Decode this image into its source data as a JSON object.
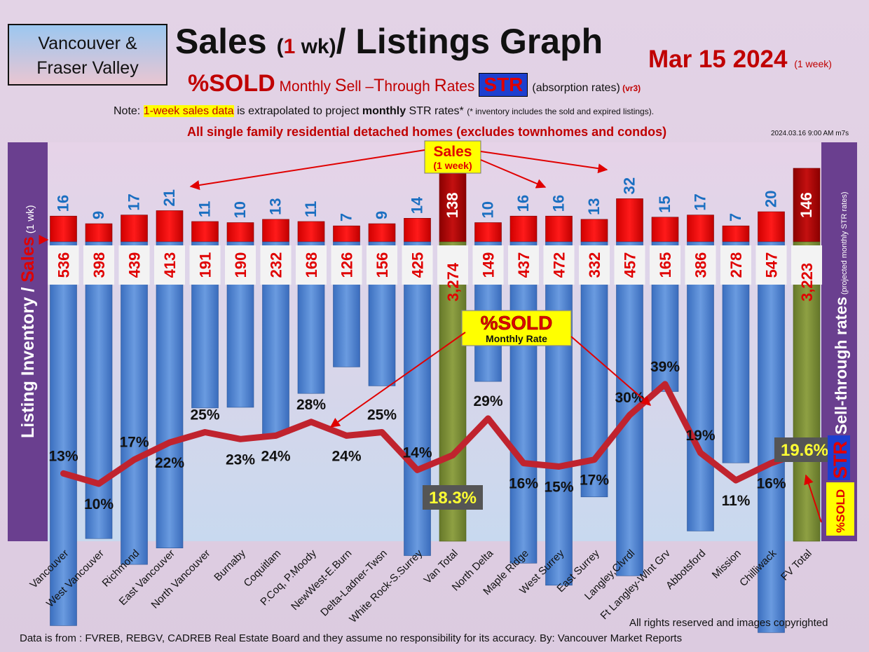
{
  "header": {
    "region_line1": "Vancouver &",
    "region_line2": "Fraser Valley",
    "title_a": "Sales ",
    "title_b": "(",
    "title_c": "1",
    "title_d": " wk)",
    "title_e": "/ Listings Graph",
    "date": "Mar 15  2024",
    "date_note": "(1 week)",
    "sub_a": "%SOLD",
    "sub_b1": " Monthly ",
    "sub_b2": "S",
    "sub_b3": "ell –",
    "sub_b4": "T",
    "sub_b5": "hrough ",
    "sub_b6": "R",
    "sub_b7": "ates",
    "sub_str": "STR",
    "sub_c": "(absorption rates)",
    "sub_d": " (vr3)",
    "note_a": "Note: ",
    "note_b": "1-week sales data",
    "note_c": " is extrapolated to project ",
    "note_d": "monthly",
    "note_e": " STR rates* ",
    "note_f": "(* inventory includes the sold and expired listings).",
    "scope": "All single family residential detached homes (excludes townhomes and condos)",
    "stamp": "2024.03.16 9:00 AM m7s"
  },
  "footer": {
    "rights": "All rights reserved and  images copyrighted",
    "source": "Data is from : FVREB, REBGV, CADREB Real Estate Board and they assume no responsibility for its accuracy. By: Vancouver Market Reports"
  },
  "chart_data": {
    "type": "bar",
    "categories": [
      "Vancouver",
      "West Vancouver",
      "Richmond",
      "East Vancouver",
      "North Vancouver",
      "Burnaby",
      "Coquitlam",
      "P.Coq, P.Moody",
      "NewWest-E.Burn",
      "Delta-Ladner-Twsn",
      "White Rock-S.Surrey",
      "Van Total",
      "North Delta",
      "Maple Ridge",
      "West Surrey",
      "East Surrey",
      "Langley,Clvrdl",
      "Ft Langley-Wlnt Grv",
      "Abbotsford",
      "Mission",
      "Chilliwack",
      "FV Total"
    ],
    "sales_labels": [
      "16",
      "9",
      "17",
      "21",
      "11",
      "10",
      "13",
      "11",
      "7",
      "9",
      "14",
      "138",
      "10",
      "16",
      "16",
      "13",
      "32",
      "15",
      "17",
      "7",
      "20",
      "146"
    ],
    "inventory_labels": [
      "536",
      "398",
      "439",
      "413",
      "191",
      "190",
      "232",
      "168",
      "126",
      "156",
      "425",
      "3,274",
      "149",
      "437",
      "472",
      "332",
      "457",
      "165",
      "386",
      "278",
      "547",
      "3,223"
    ],
    "str_labels": [
      "13%",
      "10%",
      "17%",
      "22%",
      "25%",
      "23%",
      "24%",
      "28%",
      "24%",
      "25%",
      "14%",
      "18.3%",
      "29%",
      "16%",
      "15%",
      "17%",
      "30%",
      "39%",
      "19%",
      "11%",
      "16%",
      "19.6%"
    ],
    "series": [
      {
        "name": "Sales",
        "values": [
          16,
          9,
          17,
          21,
          11,
          10,
          13,
          11,
          7,
          9,
          14,
          138,
          10,
          16,
          16,
          13,
          32,
          15,
          17,
          7,
          20,
          146
        ]
      },
      {
        "name": "Listing Inventory",
        "values": [
          536,
          398,
          439,
          413,
          191,
          190,
          232,
          168,
          126,
          156,
          425,
          3274,
          149,
          437,
          472,
          332,
          457,
          165,
          386,
          278,
          547,
          3223
        ]
      },
      {
        "name": "%SOLD",
        "values": [
          13,
          10,
          17,
          22,
          25,
          23,
          24,
          28,
          24,
          25,
          14,
          18.3,
          29,
          16,
          15,
          17,
          30,
          39,
          19,
          11,
          16,
          19.6
        ]
      }
    ],
    "total_categories": [
      "Van Total",
      "FV Total"
    ],
    "left_axis_label_a": "Listing Inventory / ",
    "left_axis_label_b": "Sales",
    "left_axis_label_c": " (1 wk)",
    "right_axis_label_a": "Sell-through rates",
    "right_axis_label_b": " (projected monthly STR rates)",
    "right_axis_str": "STR",
    "right_axis_sold": "%SOLD",
    "callout_sales_a": "Sales",
    "callout_sales_b": "(1 week)",
    "callout_sold_a": "%SOLD",
    "callout_sold_b": "Monthly Rate",
    "colors": {
      "sales": "#ff0000",
      "sales_total": "#b50000",
      "inventory": "#4a7fcf",
      "inventory_total": "#7a8f35",
      "line": "#c0232e",
      "line_dark": "#1c3a6e",
      "sales_label": "#1b6fc1",
      "inventory_label": "#e00000"
    }
  }
}
